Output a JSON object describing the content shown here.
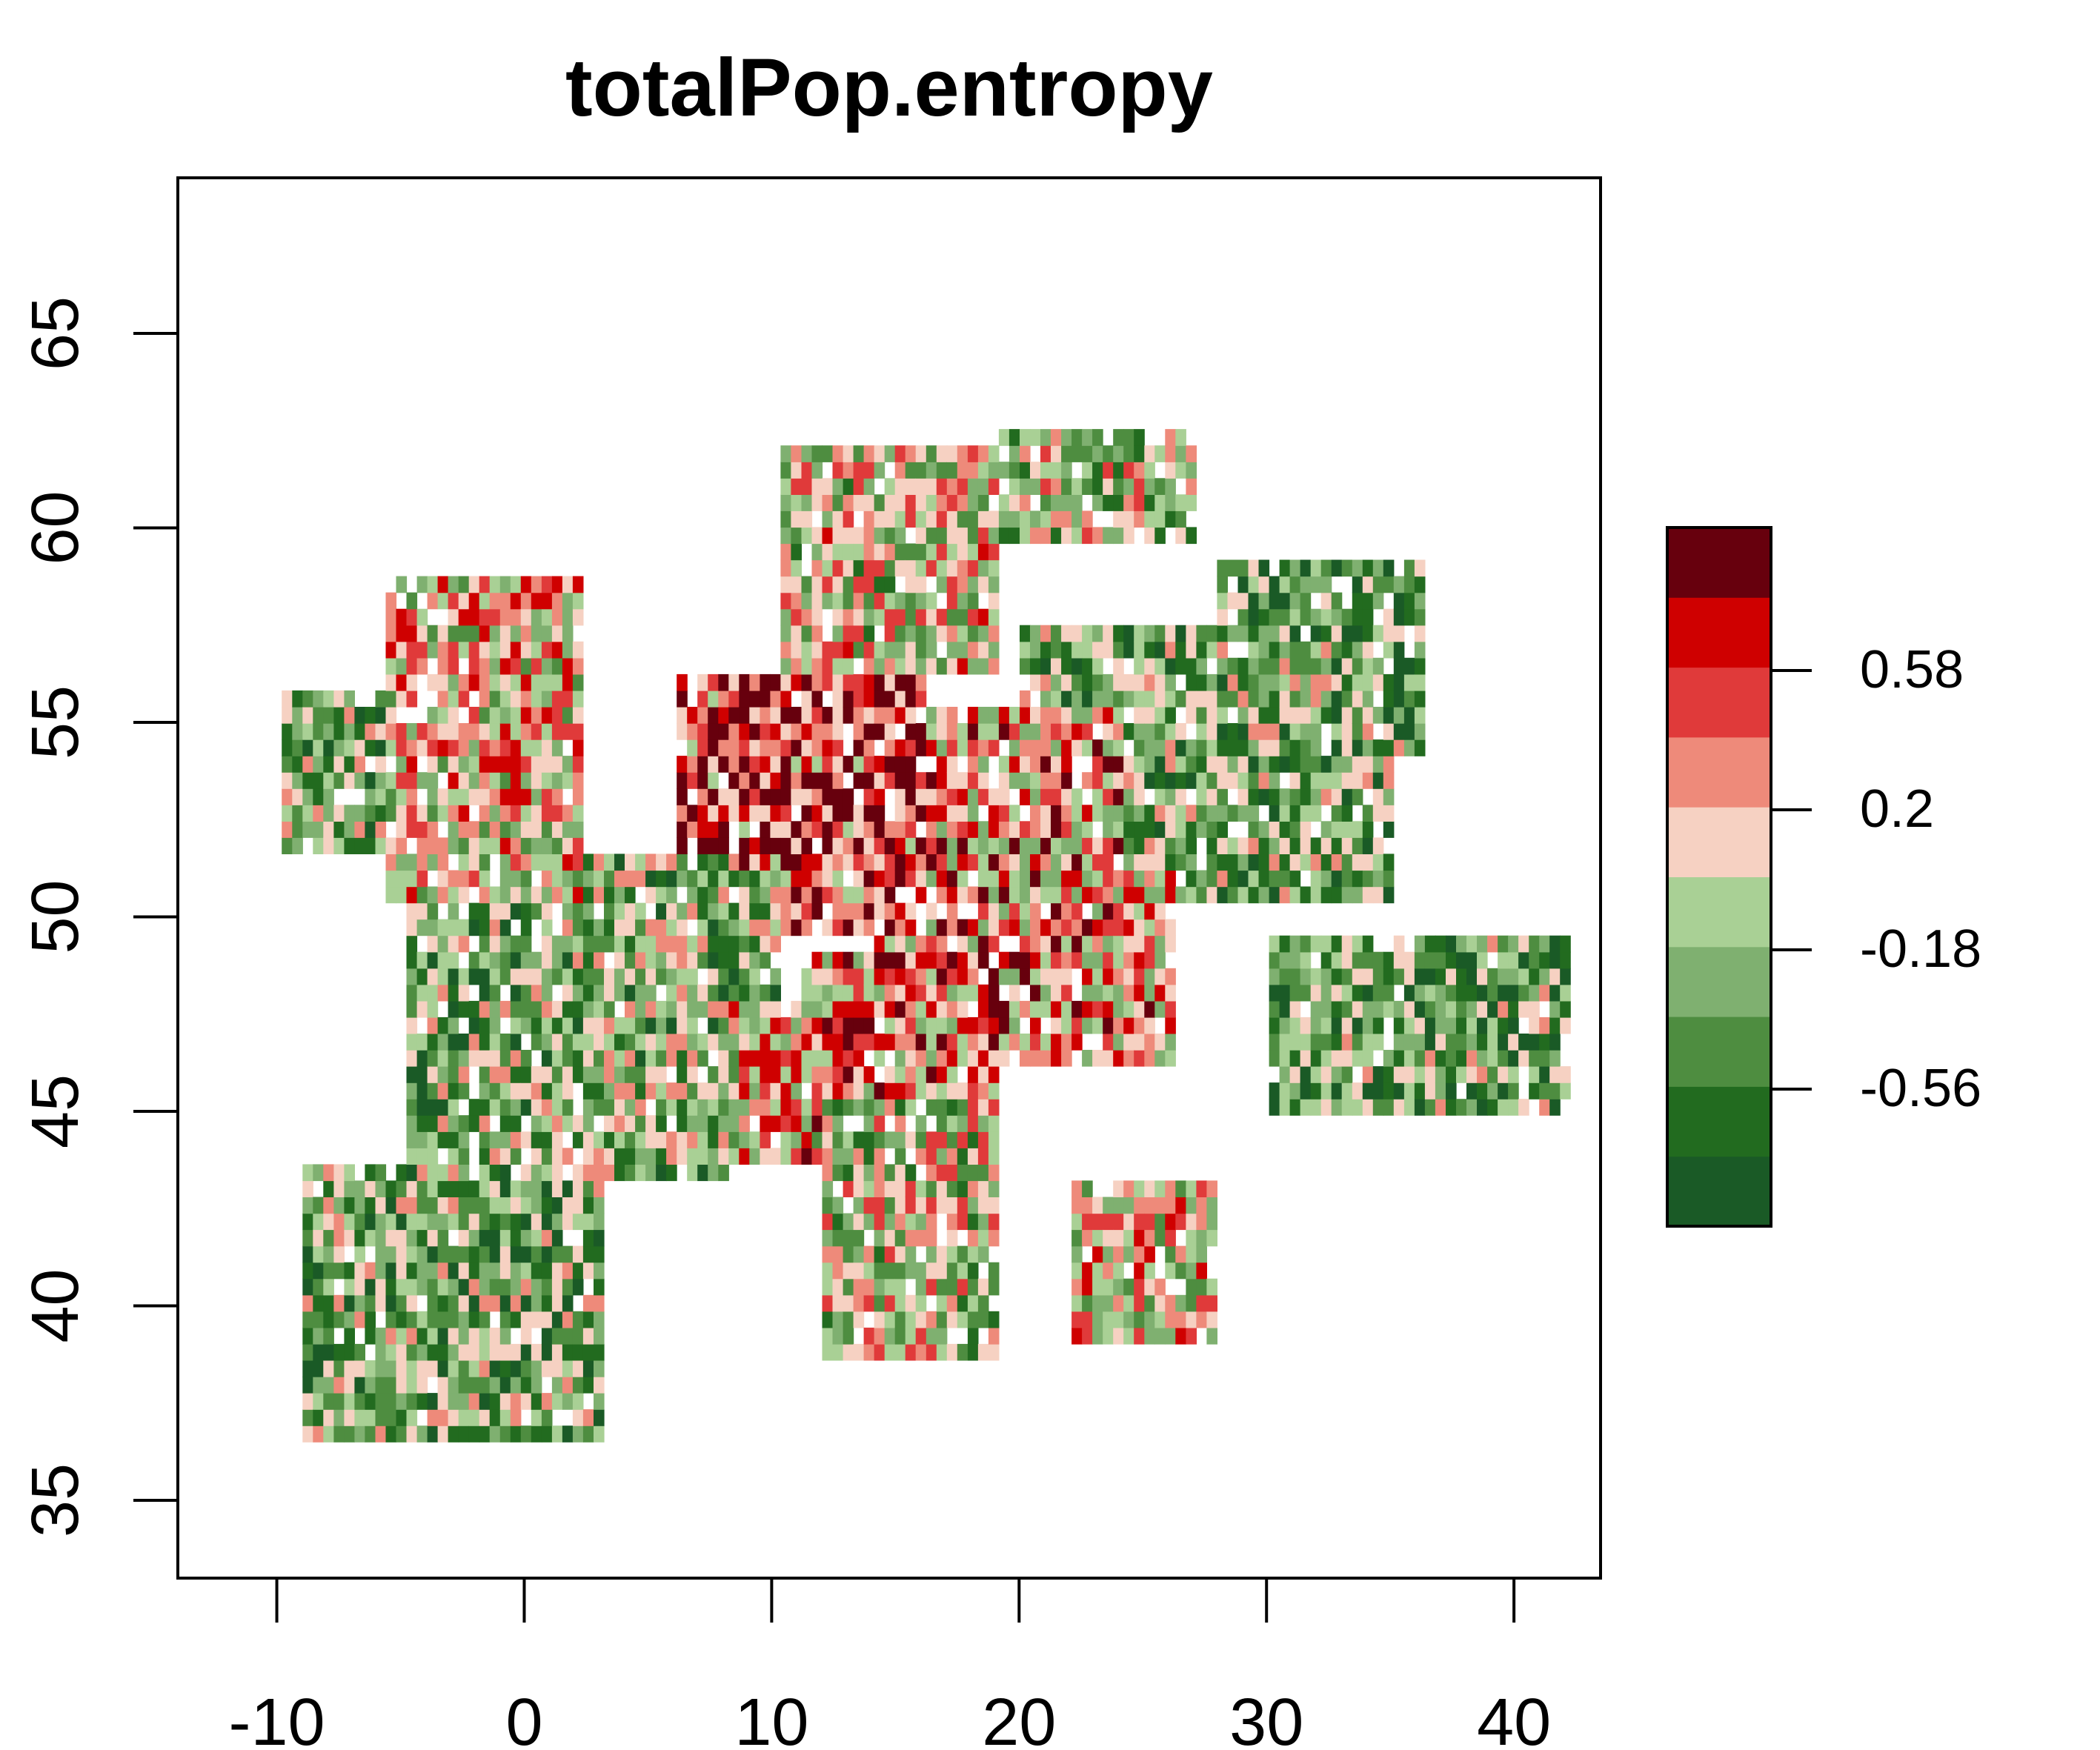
{
  "title": "totalPop.entropy",
  "chart_data": {
    "type": "heatmap",
    "title": "totalPop.entropy",
    "xlabel": "",
    "ylabel": "",
    "x_ticks": [
      "-10",
      "0",
      "10",
      "20",
      "30",
      "40"
    ],
    "y_ticks": [
      "35",
      "40",
      "45",
      "50",
      "55",
      "60",
      "65"
    ],
    "xlim": [
      -14,
      43.5
    ],
    "ylim": [
      33,
      69
    ],
    "grid": false,
    "legend": {
      "position": "right",
      "ticks": [
        "0.58",
        "0.2",
        "-0.18",
        "-0.56"
      ],
      "colors": [
        "#1a5a26",
        "#226b1f",
        "#4e8d40",
        "#7fb070",
        "#a9d095",
        "#f6d1c2",
        "#ee8a7a",
        "#e03a3a",
        "#cf0000",
        "#67000d"
      ]
    }
  }
}
